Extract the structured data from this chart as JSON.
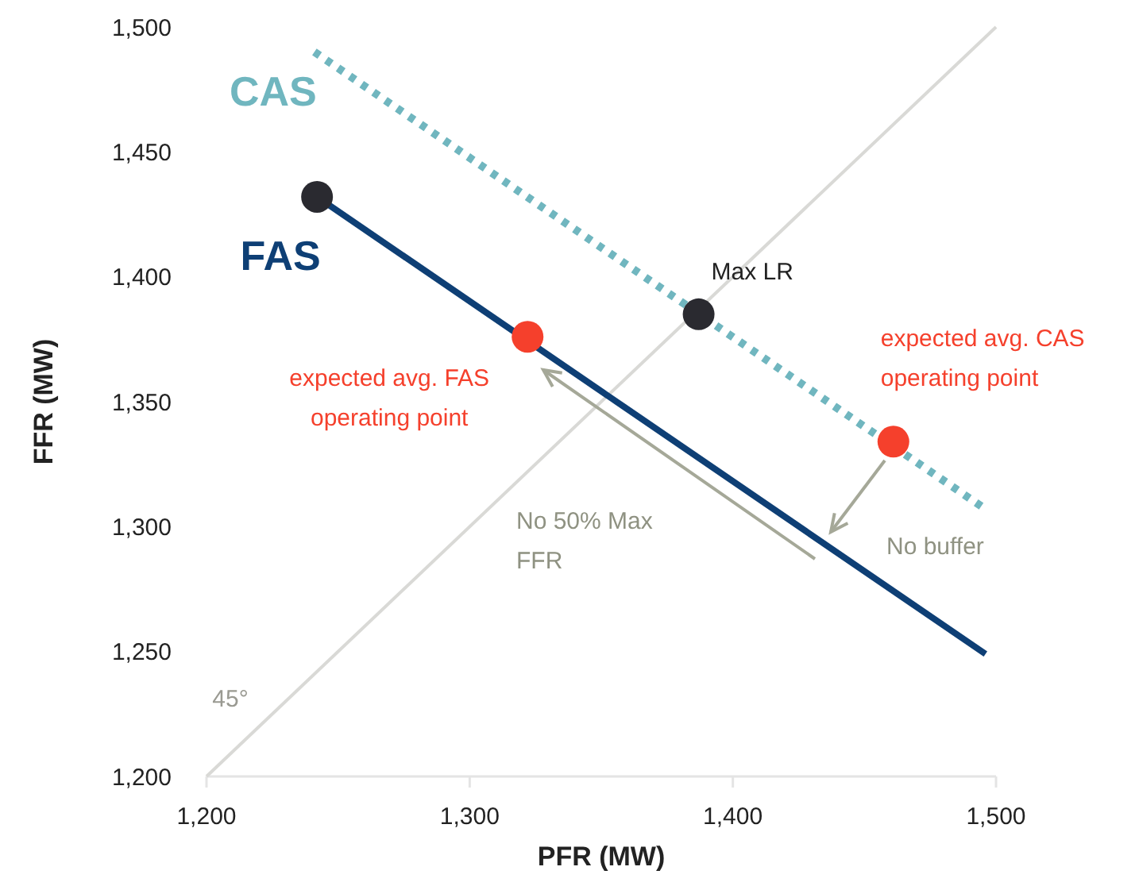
{
  "chart_data": {
    "type": "line",
    "xlabel": "PFR (MW)",
    "ylabel": "FFR (MW)",
    "xlim": [
      1200,
      1500
    ],
    "ylim": [
      1200,
      1500
    ],
    "xticks": [
      {
        "value": 1200,
        "label": "1,200"
      },
      {
        "value": 1300,
        "label": "1,300"
      },
      {
        "value": 1400,
        "label": "1,400"
      },
      {
        "value": 1500,
        "label": "1,500"
      }
    ],
    "yticks": [
      {
        "value": 1200,
        "label": "1,200"
      },
      {
        "value": 1250,
        "label": "1,250"
      },
      {
        "value": 1300,
        "label": "1,300"
      },
      {
        "value": 1350,
        "label": "1,350"
      },
      {
        "value": 1400,
        "label": "1,400"
      },
      {
        "value": 1450,
        "label": "1,450"
      },
      {
        "value": 1500,
        "label": "1,500"
      }
    ],
    "grid": false,
    "marker": "none",
    "series": [
      {
        "name": "45°",
        "color": "#d9d9d6",
        "x": [
          1200,
          1500
        ],
        "values": [
          1200,
          1500
        ],
        "line_style": "solid"
      },
      {
        "name": "CAS",
        "color": "#70b6bf",
        "x": [
          1241,
          1496
        ],
        "values": [
          1490,
          1307
        ],
        "line_style": "dotted"
      },
      {
        "name": "FAS",
        "color": "#0e3f75",
        "x": [
          1242,
          1496
        ],
        "values": [
          1432,
          1249
        ],
        "line_style": "solid"
      },
      {
        "type": "scatter",
        "color": "#2a2a30",
        "x": [
          1242,
          1387
        ],
        "values": [
          1432,
          1385
        ],
        "marker": "circle"
      },
      {
        "type": "scatter",
        "color": "#f5402c",
        "x": [
          1322,
          1461
        ],
        "values": [
          1376,
          1334
        ],
        "marker": "circle"
      }
    ],
    "annotations": [
      {
        "text": "Max LR",
        "x": 1387,
        "y": 1385
      },
      {
        "text": "expected avg. FAS\noperating point",
        "x": 1322,
        "y": 1376
      },
      {
        "text": "expected avg. CAS\noperating point",
        "x": 1461,
        "y": 1334
      },
      "No 50% Max\nFFR",
      "No buffer"
    ]
  }
}
